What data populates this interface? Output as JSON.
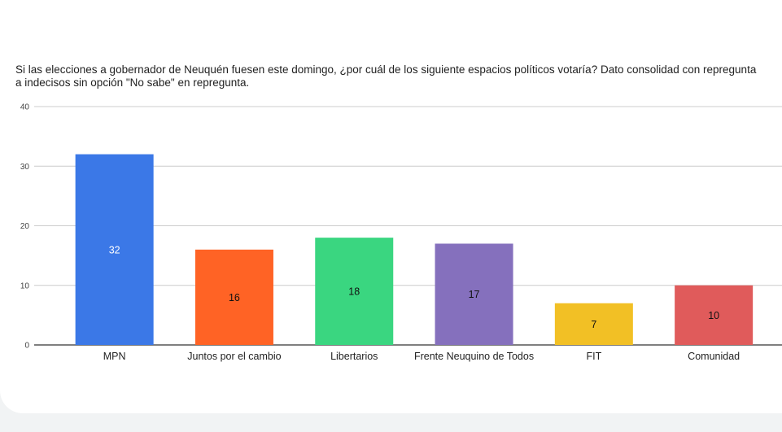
{
  "chart_data": {
    "type": "bar",
    "title": "Si las elecciones a gobernador de Neuquén fuesen este domingo, ¿por cuál de los siguiente espacios políticos votaría? Dato consolidad con repregunta a indecisos sin opción \"No sabe\" en repregunta.",
    "xlabel": "",
    "ylabel": "",
    "ylim": [
      0,
      40
    ],
    "yticks": [
      0,
      10,
      20,
      30,
      40
    ],
    "grid": true,
    "legend": "none",
    "categories": [
      "MPN",
      "Juntos por el cambio",
      "Libertarios",
      "Frente Neuquino de Todos",
      "FIT",
      "Comunidad"
    ],
    "values": [
      32,
      16,
      18,
      17,
      7,
      10
    ],
    "colors": [
      "#3b78e7",
      "#ff6325",
      "#3ad680",
      "#8570bd",
      "#f2c025",
      "#e05b5b"
    ],
    "label_colors": [
      "#ffffff",
      "#111111",
      "#111111",
      "#111111",
      "#111111",
      "#111111"
    ]
  }
}
